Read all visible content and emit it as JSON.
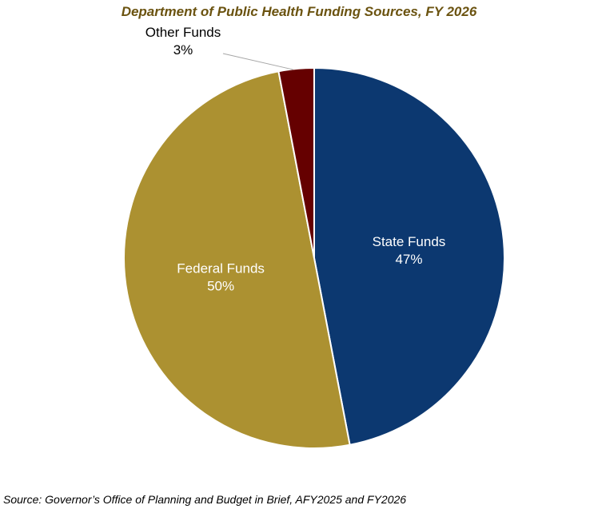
{
  "chart_data": {
    "type": "pie",
    "title": "Department of Public Health Funding Sources, FY 2026",
    "slices": [
      {
        "label": "State Funds",
        "value": 47,
        "value_label": "47%",
        "color": "#0c3870",
        "label_color": "#ffffff",
        "label_style": "inside"
      },
      {
        "label": "Federal Funds",
        "value": 50,
        "value_label": "50%",
        "color": "#ac9131",
        "label_color": "#ffffff",
        "label_style": "inside"
      },
      {
        "label": "Other Funds",
        "value": 3,
        "value_label": "3%",
        "color": "#650000",
        "label_color": "#000000",
        "label_style": "outside"
      }
    ],
    "start": "12 o'clock",
    "direction": "clockwise",
    "legend": "none"
  },
  "source": "Source: Governor’s Office of Planning and Budget in Brief, AFY2025 and FY2026"
}
